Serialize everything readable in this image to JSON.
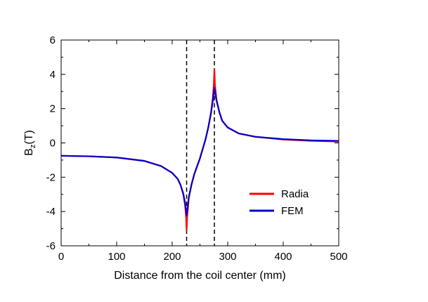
{
  "chart_data": {
    "type": "line",
    "xlabel": "Distance from the coil center (mm)",
    "ylabel_main": "B",
    "ylabel_sub": "z",
    "ylabel_suffix": "(T)",
    "xlim": [
      0,
      500
    ],
    "ylim": [
      -6,
      6
    ],
    "x_ticks": [
      0,
      100,
      200,
      300,
      400,
      500
    ],
    "y_ticks": [
      -6,
      -4,
      -2,
      0,
      2,
      4,
      6
    ],
    "grid": false,
    "legend_position": "bottom-right",
    "vlines": [
      226,
      276
    ],
    "series": [
      {
        "name": "Radia",
        "color": "#ff0000",
        "x": [
          0,
          50,
          100,
          150,
          180,
          200,
          210,
          215,
          220,
          223,
          225,
          226,
          227,
          230,
          235,
          240,
          250,
          260,
          265,
          270,
          273,
          275,
          276,
          277,
          280,
          285,
          290,
          300,
          320,
          350,
          400,
          450,
          500
        ],
        "y": [
          -0.75,
          -0.78,
          -0.85,
          -1.05,
          -1.35,
          -1.75,
          -2.1,
          -2.45,
          -3.0,
          -3.6,
          -4.3,
          -5.1,
          -4.3,
          -3.2,
          -2.4,
          -1.8,
          -0.9,
          0.2,
          0.9,
          1.8,
          2.6,
          3.4,
          4.3,
          3.4,
          2.5,
          1.8,
          1.3,
          0.9,
          0.55,
          0.35,
          0.2,
          0.12,
          0.08
        ]
      },
      {
        "name": "FEM",
        "color": "#0000cc",
        "x": [
          0,
          50,
          100,
          150,
          180,
          200,
          210,
          215,
          220,
          223,
          225,
          226,
          227,
          230,
          235,
          240,
          250,
          260,
          265,
          270,
          273,
          275,
          276,
          277,
          280,
          285,
          290,
          300,
          320,
          350,
          400,
          450,
          500
        ],
        "y": [
          -0.75,
          -0.78,
          -0.85,
          -1.05,
          -1.35,
          -1.75,
          -2.1,
          -2.45,
          -2.95,
          -3.45,
          -3.95,
          -4.25,
          -3.95,
          -3.15,
          -2.4,
          -1.8,
          -0.9,
          0.2,
          0.9,
          1.75,
          2.4,
          2.95,
          3.2,
          2.95,
          2.45,
          1.8,
          1.3,
          0.9,
          0.55,
          0.36,
          0.22,
          0.15,
          0.12
        ]
      }
    ]
  }
}
